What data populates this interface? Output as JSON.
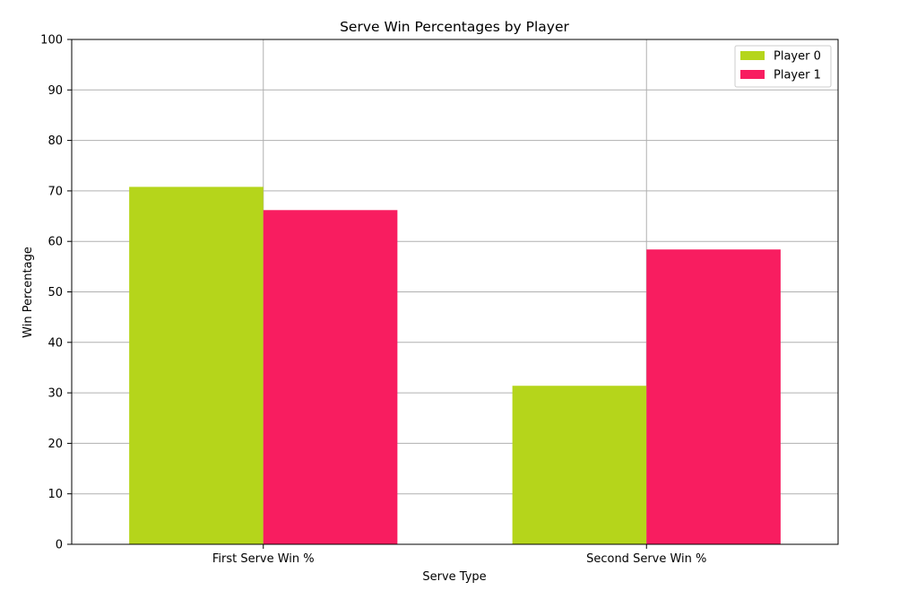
{
  "chart_data": {
    "type": "bar",
    "title": "Serve Win Percentages by Player",
    "xlabel": "Serve Type",
    "ylabel": "Win Percentage",
    "categories": [
      "First Serve Win %",
      "Second Serve Win %"
    ],
    "series": [
      {
        "name": "Player 0",
        "color": "#b5d51b",
        "values": [
          70.8,
          31.4
        ]
      },
      {
        "name": "Player 1",
        "color": "#f81d60",
        "values": [
          66.2,
          58.4
        ]
      }
    ],
    "ylim": [
      0,
      100
    ],
    "yticks": [
      0,
      10,
      20,
      30,
      40,
      50,
      60,
      70,
      80,
      90,
      100
    ],
    "grid": true,
    "legend_position": "top-right"
  }
}
